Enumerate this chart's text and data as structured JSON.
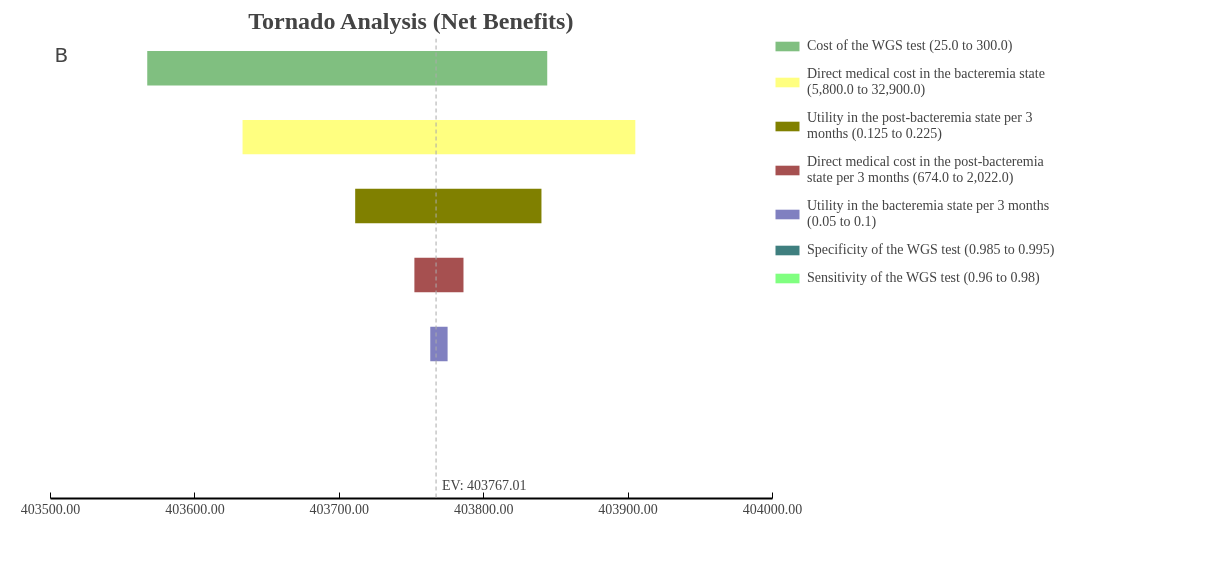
{
  "chart_data": {
    "type": "bar",
    "orientation": "horizontal",
    "title": "Tornado Analysis (Net Benefits)",
    "annotations": [
      "B"
    ],
    "categories": [
      null,
      null,
      null,
      null,
      null,
      null,
      null
    ],
    "series": [
      {
        "name": "Cost of the WGS test (25.0 to 300.0)",
        "color": "#80bf80",
        "base": [
          403567,
          null,
          null,
          null,
          null,
          null,
          null
        ],
        "values": [
          277,
          null,
          null,
          null,
          null,
          null,
          null
        ]
      },
      {
        "name": "Direct medical cost in the bacteremia state (5,800.0 to 32,900.0)",
        "color": "#ffff80",
        "base": [
          null,
          403633,
          null,
          null,
          null,
          null,
          null
        ],
        "values": [
          null,
          272,
          null,
          null,
          null,
          null,
          null
        ]
      },
      {
        "name": "Utility in the post-bacteremia state per 3 months (0.125 to 0.225)",
        "color": "#808000",
        "base": [
          null,
          null,
          403711,
          null,
          null,
          null,
          null
        ],
        "values": [
          null,
          null,
          129,
          null,
          null,
          null,
          null
        ]
      },
      {
        "name": "Direct medical cost in the post-bacteremia state per 3 months (674.0 to 2,022.0)",
        "color": "#a65050",
        "base": [
          null,
          null,
          null,
          403752,
          null,
          null,
          null
        ],
        "values": [
          null,
          null,
          null,
          34,
          null,
          null,
          null
        ]
      },
      {
        "name": "Utility in the bacteremia state per 3 months (0.05 to 0.1)",
        "color": "#8080c0",
        "base": [
          null,
          null,
          null,
          null,
          403763,
          null,
          null
        ],
        "values": [
          null,
          null,
          null,
          null,
          12,
          null,
          null
        ]
      },
      {
        "name": "Specificity of the WGS test (0.985 to 0.995)",
        "color": "#3f7f7f",
        "values": [
          null,
          null,
          null,
          null,
          null,
          null,
          null
        ]
      },
      {
        "name": "Sensitivity of the WGS test (0.96 to 0.98)",
        "color": "#80ff80",
        "values": [
          null,
          null,
          null,
          null,
          null,
          null,
          null
        ]
      }
    ],
    "xlim": [
      403500,
      404000
    ],
    "xticks": [
      {
        "value": 403500,
        "label": "403500.00"
      },
      {
        "value": 403600,
        "label": "403600.00"
      },
      {
        "value": 403700,
        "label": "403700.00"
      },
      {
        "value": 403800,
        "label": "403800.00"
      },
      {
        "value": 403900,
        "label": "403900.00"
      },
      {
        "value": 404000,
        "label": "404000.00"
      }
    ],
    "grid": false,
    "legend": "right",
    "ref_lines": [
      {
        "axis": "x",
        "value": 403767.01,
        "label": "EV: 403767.01",
        "color": "#aaaaaa",
        "line_style": "dashed"
      }
    ]
  }
}
